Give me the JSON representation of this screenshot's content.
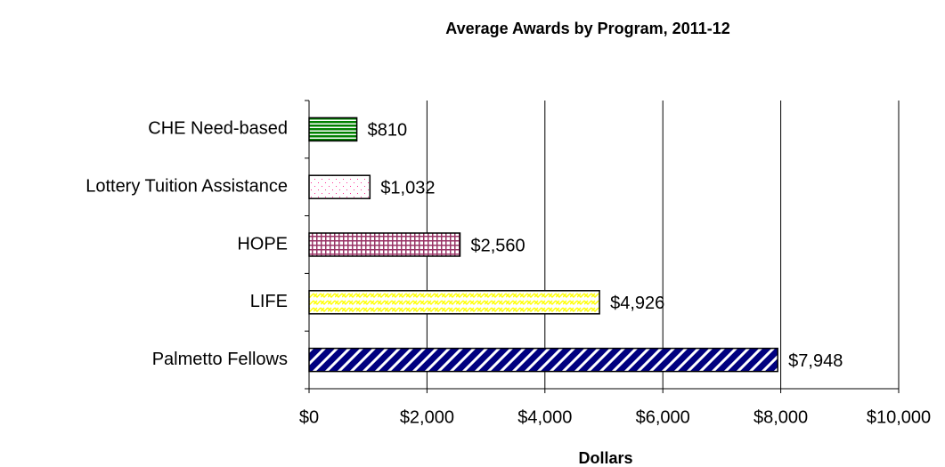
{
  "chart_data": {
    "type": "bar",
    "orientation": "horizontal",
    "title": "Average Awards by Program, 2011-12",
    "x_label": "Dollars",
    "categories": [
      "CHE Need-based",
      "Lottery Tuition Assistance",
      "HOPE",
      "LIFE",
      "Palmetto Fellows"
    ],
    "values": [
      810,
      1032,
      2560,
      4926,
      7948
    ],
    "value_labels": [
      "$810",
      "$1,032",
      "$2,560",
      "$4,926",
      "$7,948"
    ],
    "colors": [
      "#008000",
      "#ff3399",
      "#993366",
      "#ffff00",
      "#000080"
    ],
    "patterns": [
      "horizontal",
      "dots",
      "grid",
      "zigzag",
      "diagonal"
    ],
    "xlim": [
      0,
      10000
    ],
    "xticks": [
      {
        "value": 0,
        "label": "$0"
      },
      {
        "value": 2000,
        "label": "$2,000"
      },
      {
        "value": 4000,
        "label": "$4,000"
      },
      {
        "value": 6000,
        "label": "$6,000"
      },
      {
        "value": 8000,
        "label": "$8,000"
      },
      {
        "value": 10000,
        "label": "$10,000"
      }
    ],
    "grid": true
  }
}
